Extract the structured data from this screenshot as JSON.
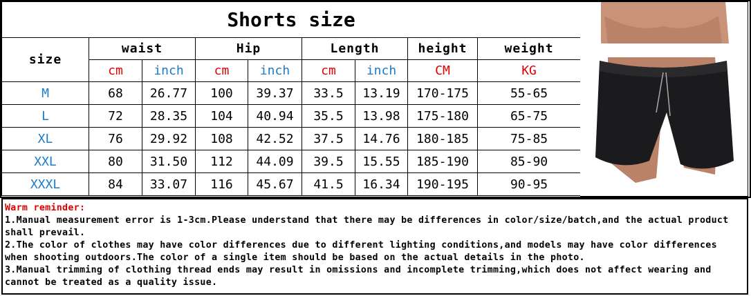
{
  "title": "Shorts size",
  "headers": {
    "size": "size",
    "waist": "waist",
    "hip": "Hip",
    "length": "Length",
    "height": "height",
    "weight": "weight",
    "units": [
      "cm",
      "inch",
      "cm",
      "inch",
      "cm",
      "inch",
      "CM",
      "KG"
    ]
  },
  "rows": [
    [
      "M",
      "68",
      "26.77",
      "100",
      "39.37",
      "33.5",
      "13.19",
      "170-175",
      "55-65"
    ],
    [
      "L",
      "72",
      "28.35",
      "104",
      "40.94",
      "35.5",
      "13.98",
      "175-180",
      "65-75"
    ],
    [
      "XL",
      "76",
      "29.92",
      "108",
      "42.52",
      "37.5",
      "14.76",
      "180-185",
      "75-85"
    ],
    [
      "XXL",
      "80",
      "31.50",
      "112",
      "44.09",
      "39.5",
      "15.55",
      "185-190",
      "85-90"
    ],
    [
      "XXXL",
      "84",
      "33.07",
      "116",
      "45.67",
      "41.5",
      "16.34",
      "190-195",
      "90-95"
    ]
  ],
  "notes": {
    "title": "Warm reminder:",
    "lines": [
      "1.Manual measurement error is 1-3cm.Please understand that there may be differences in color/size/batch,and the actual product shall prevail.",
      "2.The color of clothes may have color differences due to different lighting conditions,and models may have color differences when shooting outdoors.The color of a single item should be based on the actual details in the photo.",
      "3.Manual trimming of clothing thread ends may result in omissions and incomplete trimming,which does not affect wearing and cannot be treated as a quality issue."
    ]
  },
  "colors": {
    "unit_cm": "#e00000",
    "unit_inch": "#1a7bc9",
    "size_label": "#1a7bc9",
    "reminder": "#e00000"
  }
}
